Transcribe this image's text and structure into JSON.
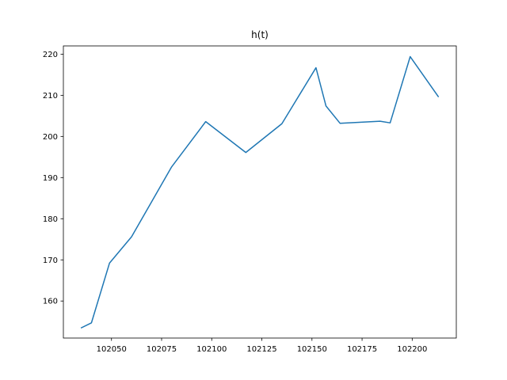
{
  "chart_data": {
    "type": "line",
    "title": "h(t)",
    "xlabel": "",
    "ylabel": "",
    "xlim": [
      102026,
      102222
    ],
    "ylim": [
      151,
      222
    ],
    "x_ticks": [
      102050,
      102075,
      102100,
      102125,
      102150,
      102175,
      102200
    ],
    "y_ticks": [
      160,
      170,
      180,
      190,
      200,
      210,
      220
    ],
    "grid": false,
    "series": [
      {
        "color": "#1f77b4",
        "x": [
          102035,
          102040,
          102049,
          102060,
          102080,
          102097,
          102117,
          102135,
          102152,
          102157,
          102164,
          102184,
          102189,
          102199,
          102213
        ],
        "y": [
          153.5,
          154.7,
          169.2,
          175.6,
          192.6,
          203.6,
          196.1,
          203.1,
          216.7,
          207.4,
          203.2,
          203.7,
          203.3,
          219.4,
          209.7
        ]
      }
    ]
  }
}
